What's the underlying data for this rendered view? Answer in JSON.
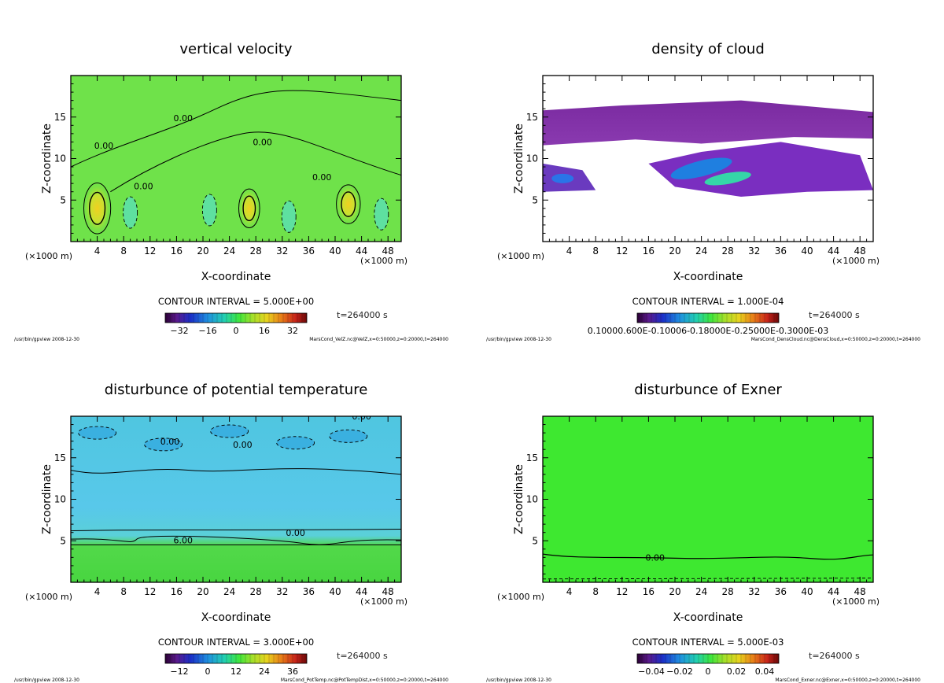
{
  "chart_data": [
    {
      "type": "heatmap",
      "title": "vertical velocity",
      "xlabel": "X-coordinate",
      "ylabel": "Z-coordinate",
      "x_unit": "(×1000 m)",
      "x_ticks": [
        4,
        8,
        12,
        16,
        20,
        24,
        28,
        32,
        36,
        40,
        44,
        48
      ],
      "y_ticks": [
        5,
        10,
        15
      ],
      "xlim": [
        0,
        50
      ],
      "ylim": [
        0,
        20
      ],
      "contour_interval": "CONTOUR INTERVAL = 5.000E+00",
      "time": "t=264000 s",
      "colorbar_ticks": [
        "−32",
        "−16",
        "0",
        "16",
        "32"
      ],
      "contour_labels": [
        "0.00",
        "0.00",
        "0.00",
        "0.00",
        "0.00"
      ],
      "footer_left": "/usr/bin/gpview  2008-12-30",
      "footer_right": "MarsCond_VelZ.nc@VelZ,x=0:50000,z=0:20000,t=264000"
    },
    {
      "type": "heatmap",
      "title": "density of cloud",
      "xlabel": "X-coordinate",
      "ylabel": "Z-coordinate",
      "x_unit": "(×1000 m)",
      "x_ticks": [
        4,
        8,
        12,
        16,
        20,
        24,
        28,
        32,
        36,
        40,
        44,
        48
      ],
      "y_ticks": [
        5,
        10,
        15
      ],
      "xlim": [
        0,
        50
      ],
      "ylim": [
        0,
        20
      ],
      "contour_interval": "CONTOUR INTERVAL = 1.000E-04",
      "time": "t=264000 s",
      "colorbar_ticks": [
        "0.10000.600E-0.10006-0.18000E-0.25000E-0.3000E-03"
      ],
      "contour_labels": [],
      "footer_left": "/usr/bin/gpview  2008-12-30",
      "footer_right": "MarsCond_DensCloud.nc@DensCloud,x=0:50000,z=0:20000,t=264000"
    },
    {
      "type": "heatmap",
      "title": "disturbunce of potential temperature",
      "xlabel": "X-coordinate",
      "ylabel": "Z-coordinate",
      "x_unit": "(×1000 m)",
      "x_ticks": [
        4,
        8,
        12,
        16,
        20,
        24,
        28,
        32,
        36,
        40,
        44,
        48
      ],
      "y_ticks": [
        5,
        10,
        15
      ],
      "xlim": [
        0,
        50
      ],
      "ylim": [
        0,
        20
      ],
      "contour_interval": "CONTOUR INTERVAL = 3.000E+00",
      "time": "t=264000 s",
      "colorbar_ticks": [
        "−12",
        "0",
        "12",
        "24",
        "36"
      ],
      "contour_labels": [
        "0.00",
        "0.00",
        "0.00",
        "0.00",
        "6.00"
      ],
      "footer_left": "/usr/bin/gpview  2008-12-30",
      "footer_right": "MarsCond_PotTemp.nc@PotTempDist,x=0:50000,z=0:20000,t=264000"
    },
    {
      "type": "heatmap",
      "title": "disturbunce of Exner",
      "xlabel": "X-coordinate",
      "ylabel": "Z-coordinate",
      "x_unit": "(×1000 m)",
      "x_ticks": [
        4,
        8,
        12,
        16,
        20,
        24,
        28,
        32,
        36,
        40,
        44,
        48
      ],
      "y_ticks": [
        5,
        10,
        15
      ],
      "xlim": [
        0,
        50
      ],
      "ylim": [
        0,
        20
      ],
      "contour_interval": "CONTOUR INTERVAL = 5.000E-03",
      "time": "t=264000 s",
      "colorbar_ticks": [
        "−0.04",
        "−0.02",
        "0",
        "0.02",
        "0.04"
      ],
      "contour_labels": [
        "0.00"
      ],
      "footer_left": "/usr/bin/gpview  2008-12-30",
      "footer_right": "MarsCond_Exner.nc@Exner,x=0:50000,z=0:20000,t=264000"
    }
  ]
}
